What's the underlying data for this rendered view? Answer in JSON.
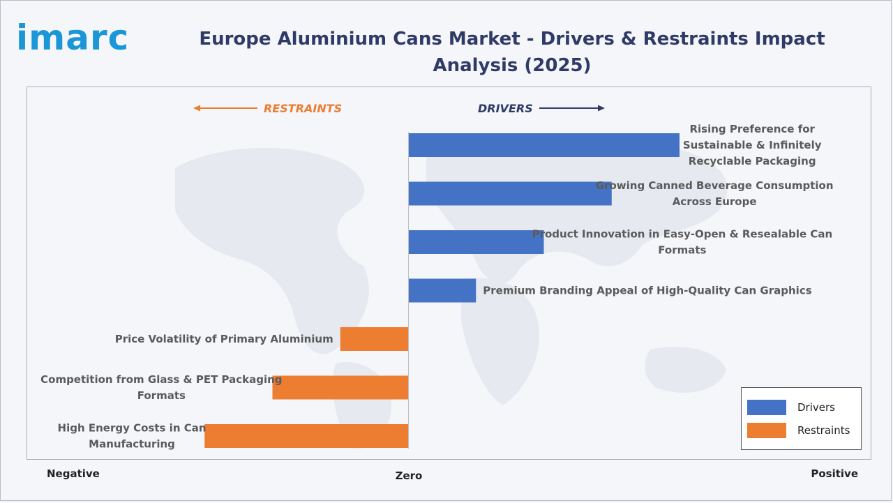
{
  "logo": {
    "text": "imarc"
  },
  "title": "Europe Aluminium Cans Market - Drivers & Restraints Impact Analysis (2025)",
  "colors": {
    "drivers": "#4472c4",
    "restraints": "#ed7d31",
    "title": "#2f3b66",
    "logo": "#1b96d6"
  },
  "direction_labels": {
    "restraints": "RESTRAINTS",
    "drivers": "DRIVERS"
  },
  "axis_words": {
    "negative": "Negative",
    "zero": "Zero",
    "positive": "Positive"
  },
  "legend": {
    "drivers": "Drivers",
    "restraints": "Restraints"
  },
  "chart_data": {
    "type": "bar",
    "orientation": "horizontal",
    "title": "Europe Aluminium Cans Market - Drivers & Restraints Impact Analysis (2025)",
    "xlim": [
      -3,
      4
    ],
    "legend_position": "bottom-right",
    "grid": false,
    "series": [
      {
        "name": "Drivers",
        "items": [
          {
            "label": "Rising Preference for Sustainable & Infinitely Recyclable Packaging",
            "value": 4
          },
          {
            "label": "Growing Canned Beverage Consumption Across Europe",
            "value": 3
          },
          {
            "label": "Product Innovation in Easy-Open & Resealable Can Formats",
            "value": 2
          },
          {
            "label": "Premium Branding Appeal of High-Quality Can Graphics",
            "value": 1
          }
        ]
      },
      {
        "name": "Restraints",
        "items": [
          {
            "label": "Price Volatility of Primary Aluminium",
            "value": -1
          },
          {
            "label": "Competition from Glass & PET Packaging Formats",
            "value": -2
          },
          {
            "label": "High Energy Costs in Can Manufacturing",
            "value": -3
          }
        ]
      }
    ]
  }
}
